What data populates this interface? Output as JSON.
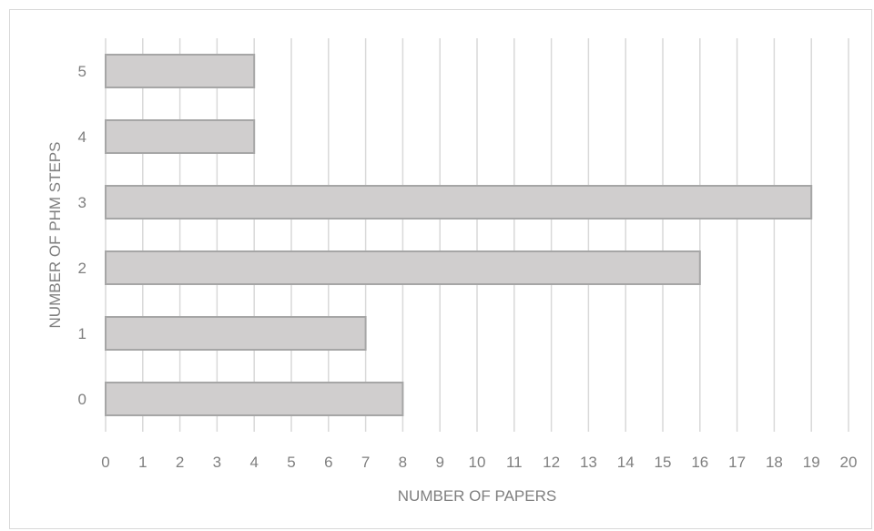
{
  "chart_data": {
    "type": "bar",
    "orientation": "horizontal",
    "categories": [
      "0",
      "1",
      "2",
      "3",
      "4",
      "5"
    ],
    "values": [
      8,
      7,
      16,
      19,
      4,
      4
    ],
    "xlabel": "NUMBER OF PAPERS",
    "ylabel": "NUMBER OF PHM STEPS",
    "xlim": [
      0,
      20
    ],
    "x_ticks": [
      "0",
      "1",
      "2",
      "3",
      "4",
      "5",
      "6",
      "7",
      "8",
      "9",
      "10",
      "11",
      "12",
      "13",
      "14",
      "15",
      "16",
      "17",
      "18",
      "19",
      "20"
    ],
    "grid": "vertical",
    "legend": "none",
    "colors": {
      "bar_fill": "#d0cece",
      "bar_stroke": "#a6a6a6",
      "grid": "#d9d9d9",
      "text": "#7f7f7f"
    }
  }
}
